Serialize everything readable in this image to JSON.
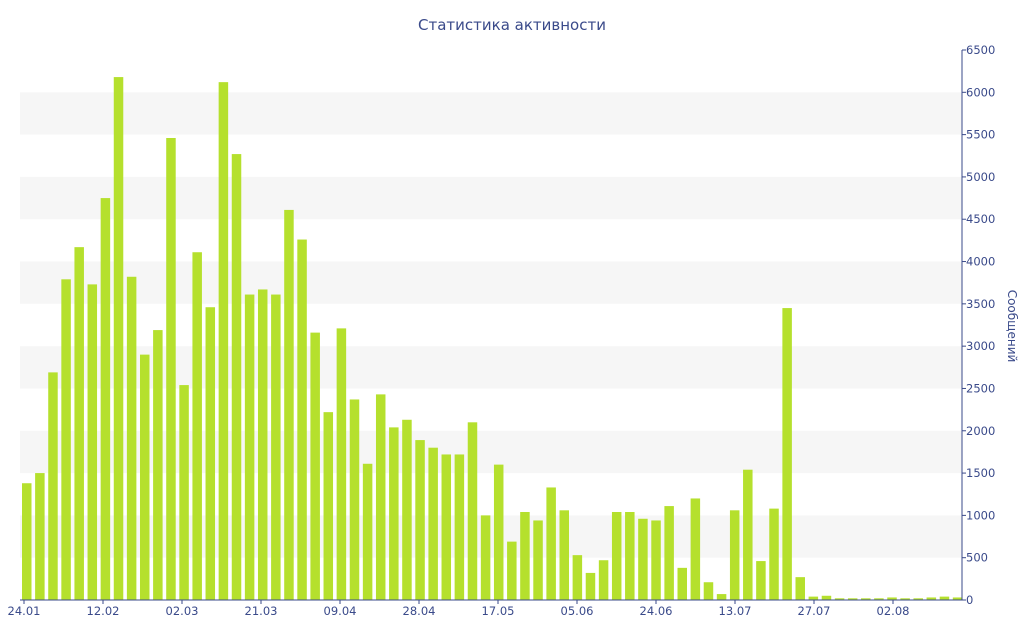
{
  "chart_data": {
    "type": "bar",
    "title": "Статистика активности",
    "ylabel": "Сообщений",
    "y_axis_side": "right",
    "ylim": [
      0,
      6500
    ],
    "yticks": [
      0,
      500,
      1000,
      1500,
      2000,
      2500,
      3000,
      3500,
      4000,
      4500,
      5000,
      5500,
      6000,
      6500
    ],
    "x_tick_labels": [
      "24.01",
      "12.02",
      "02.03",
      "21.03",
      "09.04",
      "28.04",
      "17.05",
      "05.06",
      "24.06",
      "13.07",
      "27.07",
      "02.08"
    ],
    "grid": "alternating horizontal bands",
    "bar_color": "#b5e02d",
    "values": [
      1380,
      1500,
      2690,
      3790,
      4170,
      3730,
      4750,
      6180,
      3820,
      2900,
      3190,
      5460,
      2540,
      4110,
      3460,
      6120,
      5270,
      3610,
      3670,
      3610,
      4610,
      4260,
      3160,
      2220,
      3210,
      2370,
      1610,
      2430,
      2040,
      2130,
      1890,
      1800,
      1720,
      1720,
      2100,
      1000,
      1600,
      690,
      1040,
      940,
      1330,
      1060,
      530,
      320,
      470,
      1040,
      1040,
      960,
      940,
      1110,
      380,
      1200,
      210,
      70,
      1060,
      1540,
      460,
      1080,
      3450,
      270,
      40,
      50,
      20,
      20,
      20,
      20,
      30,
      20,
      20,
      30,
      40,
      30
    ]
  }
}
